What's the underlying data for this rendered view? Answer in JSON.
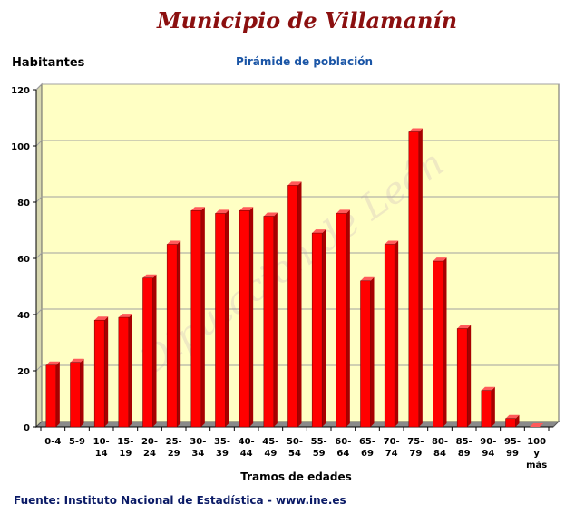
{
  "header": {
    "title": "Municipio de Villamanín",
    "subtitle": "Pirámide de población",
    "y_unit": "Habitantes"
  },
  "footer": {
    "source": "Fuente: Instituto Nacional de Estadística - www.ine.es"
  },
  "watermark": "Diputación de León",
  "chart_data": {
    "type": "bar",
    "title": "Pirámide de población",
    "xlabel": "Tramos de edades",
    "ylabel": "Habitantes",
    "ylim": [
      0,
      120
    ],
    "yticks": [
      0,
      20,
      40,
      60,
      80,
      100,
      120
    ],
    "grid": true,
    "categories": [
      [
        "0-4"
      ],
      [
        "5-9"
      ],
      [
        "10-",
        "14"
      ],
      [
        "15-",
        "19"
      ],
      [
        "20-",
        "24"
      ],
      [
        "25-",
        "29"
      ],
      [
        "30-",
        "34"
      ],
      [
        "35-",
        "39"
      ],
      [
        "40-",
        "44"
      ],
      [
        "45-",
        "49"
      ],
      [
        "50-",
        "54"
      ],
      [
        "55-",
        "59"
      ],
      [
        "60-",
        "64"
      ],
      [
        "65-",
        "69"
      ],
      [
        "70-",
        "74"
      ],
      [
        "75-",
        "79"
      ],
      [
        "80-",
        "84"
      ],
      [
        "85-",
        "89"
      ],
      [
        "90-",
        "94"
      ],
      [
        "95-",
        "99"
      ],
      [
        "100",
        "y",
        "más"
      ]
    ],
    "values": [
      22,
      23,
      38,
      39,
      53,
      65,
      77,
      76,
      77,
      75,
      86,
      69,
      76,
      52,
      65,
      105,
      59,
      35,
      13,
      3,
      0
    ],
    "colors": {
      "bar": "#ff0000",
      "bar_side": "#a80000",
      "bar_top": "#ff5a5a",
      "plot_bg": "#ffffc4",
      "floor": "#8a8a8a",
      "grid": "#a0a0a0"
    }
  }
}
